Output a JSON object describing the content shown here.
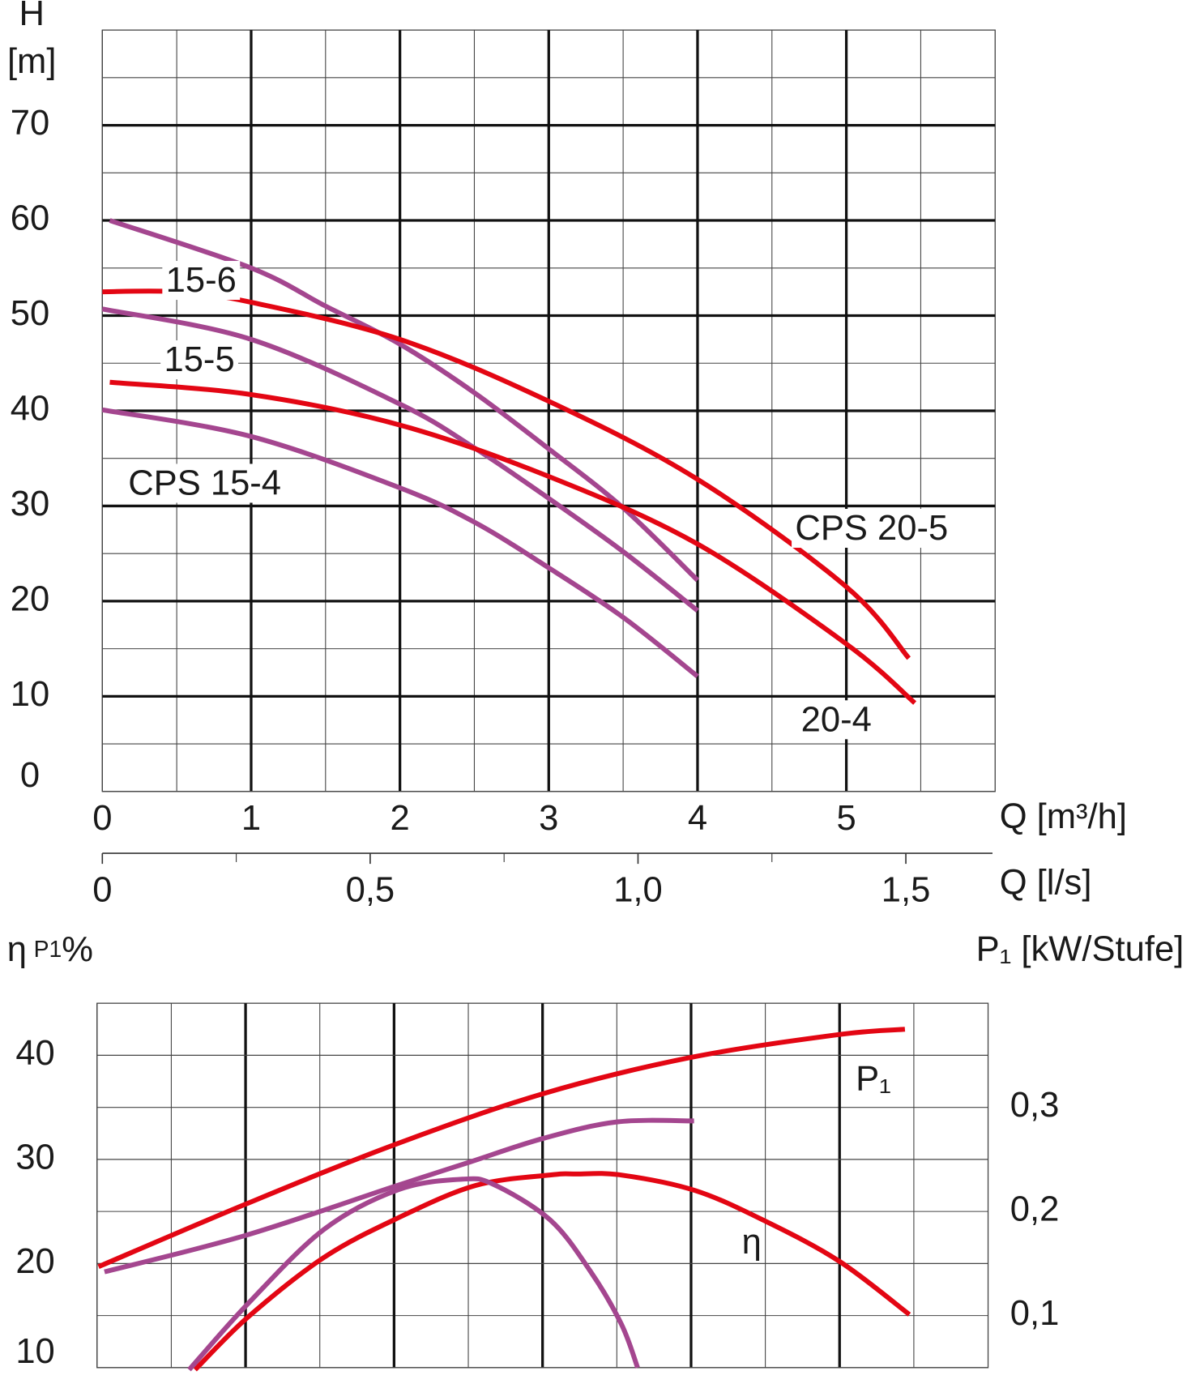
{
  "chart_data": [
    {
      "type": "line",
      "y_label_parts": [
        "H",
        "[m]"
      ],
      "x_label": "Q [m³/h]",
      "x2_label": "Q [l/s]",
      "xlim": [
        0,
        6
      ],
      "xticks": [
        0,
        1,
        2,
        3,
        4,
        5
      ],
      "xminor_ticks": [
        0.5,
        1.5,
        2.5,
        3.5,
        4.5,
        5.5
      ],
      "ylim": [
        0,
        80
      ],
      "yticks": [
        0,
        10,
        20,
        30,
        40,
        50,
        60,
        70
      ],
      "yminor_ticks": [
        5,
        15,
        25,
        35,
        45,
        55,
        65,
        75
      ],
      "x2lim": [
        0,
        1.6667
      ],
      "x2ticks": [
        0,
        {
          "value": 0.5,
          "label": "0,5"
        },
        {
          "value": 1.0,
          "label": "1,0"
        },
        {
          "value": 1.5,
          "label": "1,5"
        }
      ],
      "x2minor_ticks": [
        0.25,
        0.75,
        1.25
      ],
      "grid": true,
      "grid_bold": {
        "x": true,
        "y": true
      },
      "series": [
        {
          "name": "15-6",
          "color": "#a4468f",
          "x": [
            0.05,
            1,
            1.5,
            2,
            2.5,
            3,
            3.5,
            4
          ],
          "values": [
            60,
            55,
            51,
            47,
            41.9,
            36,
            29.8,
            22.2
          ]
        },
        {
          "name": "15-5",
          "color": "#a4468f",
          "x": [
            0,
            1,
            2,
            2.5,
            3,
            3.5,
            4
          ],
          "values": [
            50.7,
            47.5,
            40.7,
            36.1,
            30.8,
            25.2,
            19
          ]
        },
        {
          "name": "CPS 15-4",
          "color": "#a4468f",
          "x": [
            0,
            1,
            2,
            2.5,
            3,
            3.5,
            4
          ],
          "values": [
            40.1,
            37.3,
            31.9,
            28.3,
            23.5,
            18.3,
            12.1
          ]
        },
        {
          "name": "CPS 20-5",
          "color": "#e30613",
          "x": [
            0,
            0.5,
            1,
            2,
            3,
            4,
            5,
            5.42
          ],
          "values": [
            52.5,
            52.5,
            51.4,
            47.5,
            41,
            32.8,
            21.5,
            14
          ]
        },
        {
          "name": "20-4",
          "color": "#e30613",
          "x": [
            0.05,
            1,
            2,
            3,
            4,
            5,
            5.46
          ],
          "values": [
            43,
            41.7,
            38.5,
            33.1,
            26,
            15.5,
            9.3
          ]
        }
      ]
    },
    {
      "type": "line",
      "y_label_parts": [
        "η",
        "P1",
        "%"
      ],
      "y2_label": "P₁ [kW/Stufe]",
      "xlim": [
        0,
        6
      ],
      "xticks": [
        0,
        1,
        2,
        3,
        4,
        5
      ],
      "xminor_ticks": [
        0.5,
        1.5,
        2.5,
        3.5,
        4.5,
        5.5
      ],
      "ylim": [
        10,
        45
      ],
      "yticks": [
        10,
        20,
        30,
        40
      ],
      "yminor_ticks": [
        15,
        25,
        35
      ],
      "y2lim": [
        0.05,
        0.4
      ],
      "y2ticks": [
        {
          "value": 0.1,
          "label": "0,1"
        },
        {
          "value": 0.2,
          "label": "0,2"
        },
        {
          "value": 0.3,
          "label": "0,3"
        }
      ],
      "grid": true,
      "grid_bold": {
        "x": true,
        "y": false
      },
      "series": [
        {
          "name": "P₁",
          "color": "#e30613",
          "axis": "y2",
          "x": [
            0.01,
            1,
            2,
            3,
            4,
            5,
            5.44
          ],
          "values": [
            0.147,
            0.207,
            0.264,
            0.313,
            0.348,
            0.37,
            0.375
          ]
        },
        {
          "color": "#a4468f",
          "axis": "y2",
          "x": [
            0.05,
            1,
            2,
            2.5,
            3,
            3.5,
            4.02
          ],
          "values": [
            0.142,
            0.177,
            0.224,
            0.247,
            0.27,
            0.286,
            0.287
          ]
        },
        {
          "name": "η",
          "color": "#e30613",
          "x": [
            0.66,
            1.02,
            1.53,
            2.03,
            2.55,
            3.05,
            3.23,
            3.53,
            4.03,
            4.51,
            5,
            5.47
          ],
          "values": [
            9.8,
            14.9,
            20.6,
            24.4,
            27.5,
            28.5,
            28.6,
            28.5,
            27,
            24,
            20.2,
            15.1
          ]
        },
        {
          "color": "#a4468f",
          "x": [
            0.62,
            1.02,
            1.53,
            2.03,
            2.46,
            2.67,
            3.05,
            3.32,
            3.53,
            3.64
          ],
          "values": [
            9.8,
            16.2,
            23.3,
            27.1,
            28.1,
            27.6,
            24.2,
            19.3,
            14.2,
            10
          ]
        }
      ]
    }
  ]
}
